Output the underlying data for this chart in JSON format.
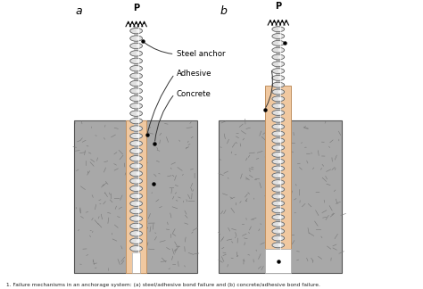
{
  "fig_width": 4.74,
  "fig_height": 3.24,
  "dpi": 100,
  "bg_color": "#ffffff",
  "concrete_color": "#a0a0a0",
  "adhesive_color": "#f0c8a0",
  "caption": "1. Failure mechanisms in an anchorage system: (a) steel/adhesive bond failure and (b) concrete/adhesive bond failure.",
  "label_a": "a",
  "label_b": "b",
  "label_P": "P",
  "label_steel": "Steel anchor",
  "label_adhesive": "Adhesive",
  "label_concrete": "Concrete"
}
